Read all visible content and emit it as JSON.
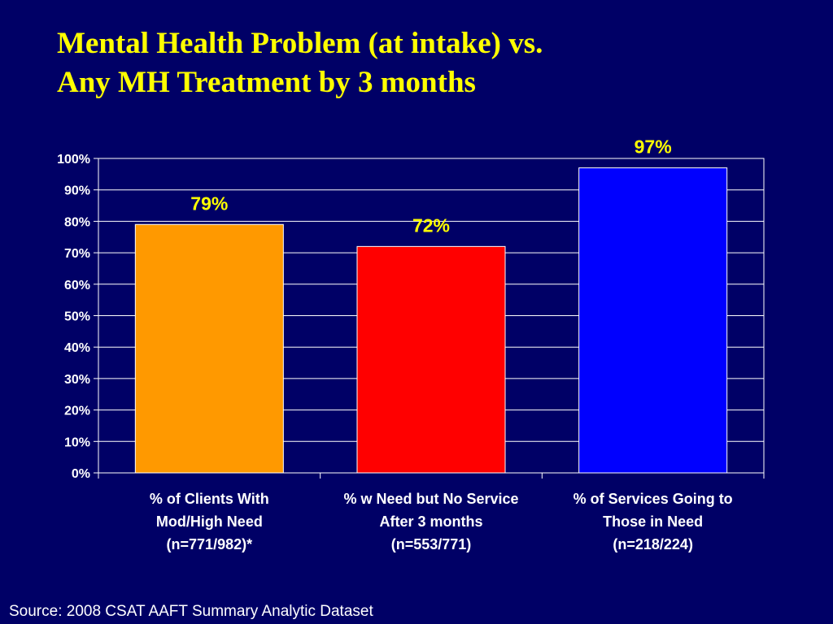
{
  "slide": {
    "title_line1": "Mental Health Problem (at intake) vs.",
    "title_line2": "Any MH Treatment by 3 months",
    "source": "Source: 2008 CSAT AAFT Summary Analytic Dataset"
  },
  "colors": {
    "background": "#000066",
    "title": "#FFFF00",
    "value_labels": "#FFFF00",
    "axis_text": "#FFFFFF",
    "plot_border": "#FFFFFF"
  },
  "chart_data": {
    "type": "bar",
    "title": "",
    "xlabel": "",
    "ylabel": "",
    "ylim": [
      0,
      100
    ],
    "yticks": [
      0,
      10,
      20,
      30,
      40,
      50,
      60,
      70,
      80,
      90,
      100
    ],
    "ytick_labels": [
      "0%",
      "10%",
      "20%",
      "30%",
      "40%",
      "50%",
      "60%",
      "70%",
      "80%",
      "90%",
      "100%"
    ],
    "grid": true,
    "legend": "none",
    "categories": [
      [
        "% of Clients With",
        "Mod/High Need",
        "(n=771/982)*"
      ],
      [
        "% w Need but No Service",
        "After 3 months",
        "(n=553/771)"
      ],
      [
        "% of Services Going to",
        "Those in Need",
        "(n=218/224)"
      ]
    ],
    "values": [
      79,
      72,
      97
    ],
    "value_labels": [
      "79%",
      "72%",
      "97%"
    ],
    "bar_colors": [
      "#FF9900",
      "#FF0000",
      "#0000FF"
    ]
  }
}
